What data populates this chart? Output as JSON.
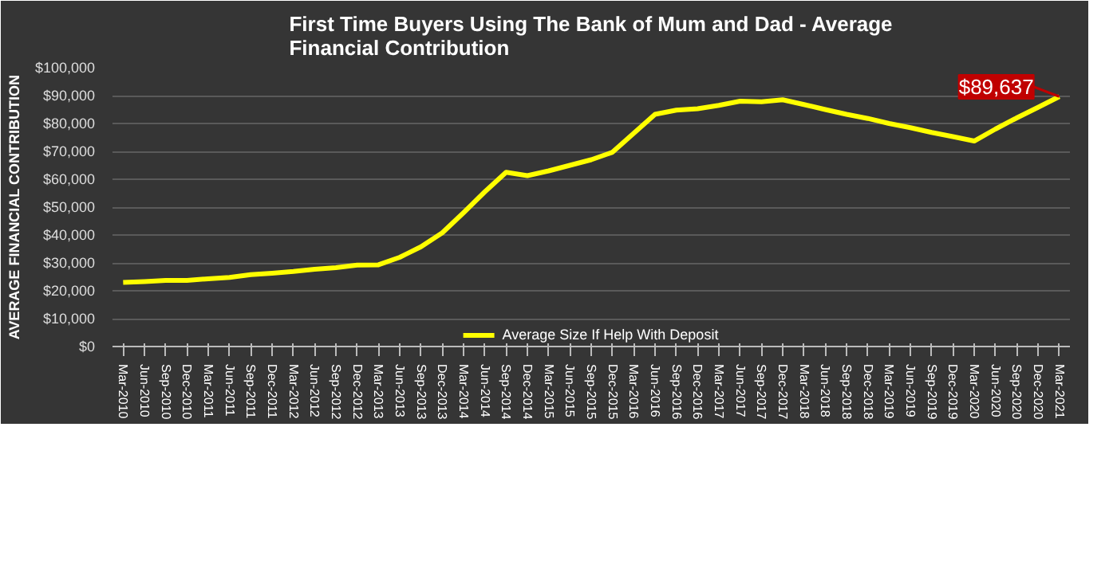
{
  "chart_data": {
    "type": "line",
    "title": "First Time Buyers Using The Bank of Mum and Dad - Average Financial Contribution",
    "ylabel": "AVERAGE FINANCIAL CONTRIBUTION",
    "categories": [
      "Mar-2010",
      "Jun-2010",
      "Sep-2010",
      "Dec-2010",
      "Mar-2011",
      "Jun-2011",
      "Sep-2011",
      "Dec-2011",
      "Mar-2012",
      "Jun-2012",
      "Sep-2012",
      "Dec-2012",
      "Mar-2013",
      "Jun-2013",
      "Sep-2013",
      "Dec-2013",
      "Mar-2014",
      "Jun-2014",
      "Sep-2014",
      "Dec-2014",
      "Mar-2015",
      "Jun-2015",
      "Sep-2015",
      "Dec-2015",
      "Mar-2016",
      "Jun-2016",
      "Sep-2016",
      "Dec-2016",
      "Mar-2017",
      "Jun-2017",
      "Sep-2017",
      "Dec-2017",
      "Mar-2018",
      "Jun-2018",
      "Sep-2018",
      "Dec-2018",
      "Mar-2019",
      "Jun-2019",
      "Sep-2019",
      "Dec-2019",
      "Mar-2020",
      "Jun-2020",
      "Sep-2020",
      "Dec-2020",
      "Mar-2021"
    ],
    "series": [
      {
        "name": "Average Size If Help With Deposit",
        "color": "#ffff00",
        "values": [
          23000,
          23300,
          23700,
          23700,
          24300,
          24800,
          25800,
          26300,
          26900,
          27700,
          28300,
          29200,
          29300,
          32000,
          35800,
          40800,
          48000,
          55500,
          62500,
          61300,
          63000,
          65000,
          67000,
          69700,
          76500,
          83300,
          84800,
          85300,
          86500,
          88000,
          87800,
          88500,
          86800,
          85000,
          83300,
          81800,
          80000,
          78500,
          76800,
          75300,
          73700,
          78000,
          82000,
          85800,
          89637
        ]
      }
    ],
    "ylim": [
      0,
      100000
    ],
    "yticks": [
      {
        "value": 0,
        "label": "$0"
      },
      {
        "value": 10000,
        "label": "$10,000"
      },
      {
        "value": 20000,
        "label": "$20,000"
      },
      {
        "value": 30000,
        "label": "$30,000"
      },
      {
        "value": 40000,
        "label": "$40,000"
      },
      {
        "value": 50000,
        "label": "$50,000"
      },
      {
        "value": 60000,
        "label": "$60,000"
      },
      {
        "value": 70000,
        "label": "$70,000"
      },
      {
        "value": 80000,
        "label": "$80,000"
      },
      {
        "value": 90000,
        "label": "$90,000"
      },
      {
        "value": 100000,
        "label": "$100,000"
      }
    ],
    "annotations": [
      {
        "text": "$89,637",
        "x": "Mar-2021",
        "y": 89637
      }
    ],
    "grid": "y",
    "legend": "bottom"
  }
}
